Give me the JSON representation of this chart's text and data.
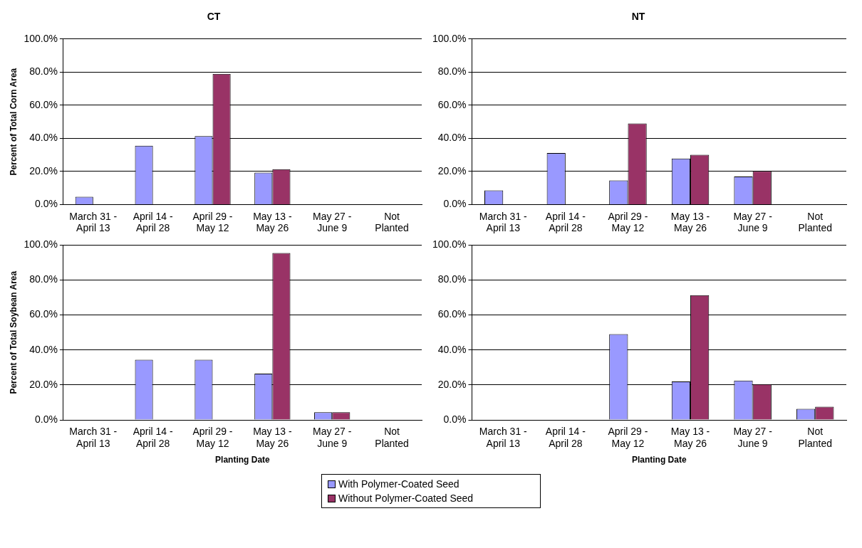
{
  "chart_data": [
    {
      "type": "bar",
      "title": "CT",
      "ylabel": "Percent of Total Corn Area",
      "categories": [
        "March 31 - April 13",
        "April 14 - April 28",
        "April 29 - May 12",
        "May 13 - May 26",
        "May 27 - June 9",
        "Not Planted"
      ],
      "series": [
        {
          "name": "With Polymer-Coated Seed",
          "color": "#9999ff",
          "values": [
            4.7,
            35.5,
            41.3,
            19.3,
            0,
            0
          ]
        },
        {
          "name": "Without Polymer-Coated Seed",
          "color": "#993366",
          "values": [
            0,
            0,
            79,
            21.3,
            0,
            0
          ]
        }
      ],
      "ylim": [
        0,
        100
      ],
      "yticks": [
        {
          "value": 0,
          "label": "0.0%"
        },
        {
          "value": 20,
          "label": "20.0%"
        },
        {
          "value": 40,
          "label": "40.0%"
        },
        {
          "value": 60,
          "label": "60.0%"
        },
        {
          "value": 80,
          "label": "80.0%"
        },
        {
          "value": 100,
          "label": "100.0%"
        }
      ],
      "grid": "y",
      "legend": "bottom"
    },
    {
      "type": "bar",
      "title": "NT",
      "categories": [
        "March 31 - April 13",
        "April 14 - April 28",
        "April 29 - May 12",
        "May 13 - May 26",
        "May 27 - June 9",
        "Not Planted"
      ],
      "series": [
        {
          "name": "With Polymer-Coated Seed",
          "color": "#9999ff",
          "values": [
            8.6,
            31.1,
            14.6,
            27.8,
            16.9,
            0
          ]
        },
        {
          "name": "Without Polymer-Coated Seed",
          "color": "#993366",
          "values": [
            0,
            0,
            49,
            30,
            20.3,
            0
          ]
        }
      ],
      "ylim": [
        0,
        100
      ],
      "yticks": [
        {
          "value": 0,
          "label": "0.0%"
        },
        {
          "value": 20,
          "label": "20.0%"
        },
        {
          "value": 40,
          "label": "40.0%"
        },
        {
          "value": 60,
          "label": "60.0%"
        },
        {
          "value": 80,
          "label": "80.0%"
        },
        {
          "value": 100,
          "label": "100.0%"
        }
      ],
      "grid": "y",
      "legend": "bottom"
    },
    {
      "type": "bar",
      "xlabel": "Planting Date",
      "ylabel": "Percent of Total Soybean Area",
      "categories": [
        "March 31 - April 13",
        "April 14 - April 28",
        "April 29 - May 12",
        "May 13 - May 26",
        "May 27 - June 9",
        "Not Planted"
      ],
      "series": [
        {
          "name": "With Polymer-Coated Seed",
          "color": "#9999ff",
          "values": [
            0,
            34.4,
            34.4,
            26.5,
            4.4,
            0
          ]
        },
        {
          "name": "Without Polymer-Coated Seed",
          "color": "#993366",
          "values": [
            0,
            0,
            0,
            95.5,
            4.4,
            0
          ]
        }
      ],
      "ylim": [
        0,
        100
      ],
      "yticks": [
        {
          "value": 0,
          "label": "0.0%"
        },
        {
          "value": 20,
          "label": "20.0%"
        },
        {
          "value": 40,
          "label": "40.0%"
        },
        {
          "value": 60,
          "label": "60.0%"
        },
        {
          "value": 80,
          "label": "80.0%"
        },
        {
          "value": 100,
          "label": "100.0%"
        }
      ],
      "grid": "y",
      "legend": "bottom"
    },
    {
      "type": "bar",
      "xlabel": "Planting Date",
      "categories": [
        "March 31 - April 13",
        "April 14 - April 28",
        "April 29 - May 12",
        "May 13 - May 26",
        "May 27 - June 9",
        "Not Planted"
      ],
      "series": [
        {
          "name": "With Polymer-Coated Seed",
          "color": "#9999ff",
          "values": [
            0,
            0,
            49.1,
            22,
            22.5,
            6.3
          ]
        },
        {
          "name": "Without Polymer-Coated Seed",
          "color": "#993366",
          "values": [
            0,
            0,
            0,
            71.4,
            20.5,
            7.5
          ]
        }
      ],
      "ylim": [
        0,
        100
      ],
      "yticks": [
        {
          "value": 0,
          "label": "0.0%"
        },
        {
          "value": 20,
          "label": "20.0%"
        },
        {
          "value": 40,
          "label": "40.0%"
        },
        {
          "value": 60,
          "label": "60.0%"
        },
        {
          "value": 80,
          "label": "80.0%"
        },
        {
          "value": 100,
          "label": "100.0%"
        }
      ],
      "grid": "y",
      "legend": "bottom"
    }
  ]
}
